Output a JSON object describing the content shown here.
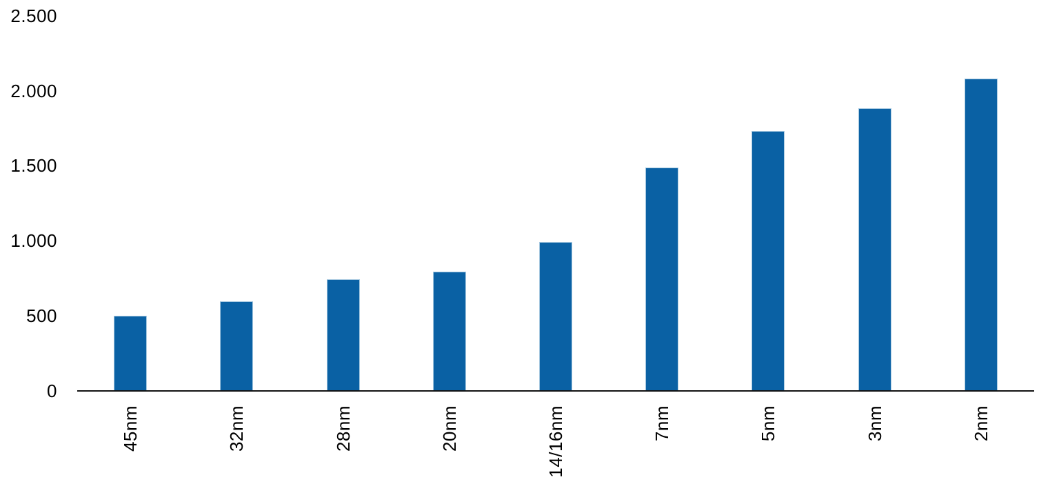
{
  "chart_data": {
    "type": "bar",
    "categories": [
      "45nm",
      "32nm",
      "28nm",
      "20nm",
      "14/16nm",
      "7nm",
      "5nm",
      "3nm",
      "2nm"
    ],
    "values": [
      500,
      600,
      750,
      800,
      1000,
      1500,
      1750,
      1900,
      2100
    ],
    "title": "",
    "xlabel": "",
    "ylabel": "",
    "ylim": [
      0,
      2500
    ],
    "y_tick_labels": [
      "2.500",
      "2.000",
      "1.500",
      "1.000",
      "500",
      "0"
    ],
    "y_tick_values": [
      2500,
      2000,
      1500,
      1000,
      500,
      0
    ],
    "grid": false,
    "legend_position": "none",
    "colors": {
      "bar_fill": "#0a61a4",
      "bar_border": "#a6c8e0",
      "axis_line": "#111111",
      "label_text": "#000000",
      "background": "#ffffff"
    }
  }
}
